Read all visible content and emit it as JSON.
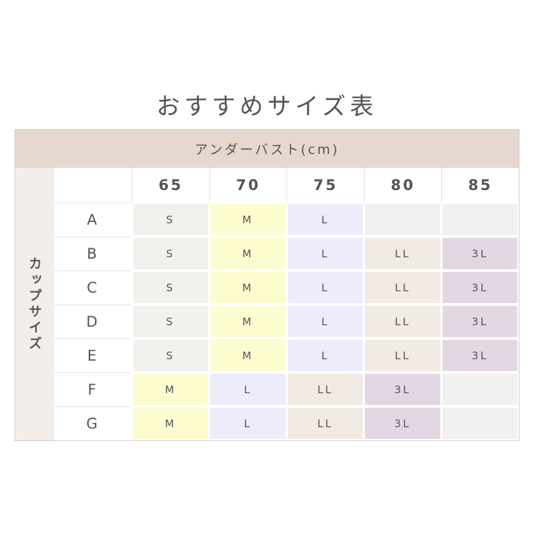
{
  "title": "おすすめサイズ表",
  "column_group_label": "アンダーバスト(cm)",
  "row_group_label": "カップサイズ",
  "columns": [
    "65",
    "70",
    "75",
    "80",
    "85"
  ],
  "rows": [
    {
      "cup": "A",
      "sizes": [
        "S",
        "M",
        "L",
        "",
        ""
      ]
    },
    {
      "cup": "B",
      "sizes": [
        "S",
        "M",
        "L",
        "LL",
        "3L"
      ]
    },
    {
      "cup": "C",
      "sizes": [
        "S",
        "M",
        "L",
        "LL",
        "3L"
      ]
    },
    {
      "cup": "D",
      "sizes": [
        "S",
        "M",
        "L",
        "LL",
        "3L"
      ]
    },
    {
      "cup": "E",
      "sizes": [
        "S",
        "M",
        "L",
        "LL",
        "3L"
      ]
    },
    {
      "cup": "F",
      "sizes": [
        "M",
        "L",
        "LL",
        "3L",
        ""
      ]
    },
    {
      "cup": "G",
      "sizes": [
        "M",
        "L",
        "LL",
        "3L",
        ""
      ]
    }
  ],
  "size_colors": {
    "S": "#f3f1ee",
    "M": "#fdfccf",
    "L": "#ececfb",
    "LL": "#f1ebe3",
    "3L": "#e4d7e4",
    "": "#f1f1f1"
  },
  "header_color": "#e6d8ce"
}
